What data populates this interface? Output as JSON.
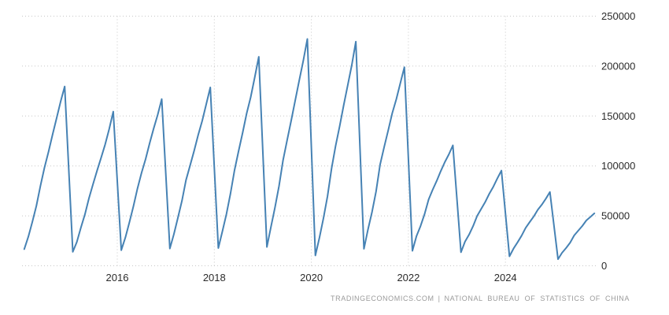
{
  "footer": {
    "provider": "TRADINGECONOMICS.COM",
    "separator": "|",
    "source": "NATIONAL BUREAU OF STATISTICS OF CHINA"
  },
  "colors": {
    "line": "#4682b4",
    "grid": "#c6c6c6",
    "axis_text": "#2b2b2b",
    "footer_text": "#9a9a9a",
    "background": "#ffffff"
  },
  "chart_data": {
    "type": "line",
    "title": "",
    "xlabel": "",
    "ylabel": "",
    "x_ticks": [
      2016,
      2018,
      2020,
      2022,
      2024
    ],
    "x_tick_labels": [
      "2016",
      "2018",
      "2020",
      "2022",
      "2024"
    ],
    "y_ticks": [
      0,
      50000,
      100000,
      150000,
      200000,
      250000
    ],
    "y_tick_labels": [
      "0",
      "50000",
      "100000",
      "150000",
      "200000",
      "250000"
    ],
    "ylim": [
      0,
      250000
    ],
    "x_range_time": [
      2014.083,
      2025.833
    ],
    "grid": "dotted",
    "legend": "none",
    "series": [
      {
        "points": [
          [
            2014,
            2,
            16667
          ],
          [
            2014,
            3,
            29090
          ],
          [
            2014,
            4,
            43934
          ],
          [
            2014,
            5,
            59912
          ],
          [
            2014,
            6,
            80126
          ],
          [
            2014,
            7,
            98240
          ],
          [
            2014,
            8,
            114382
          ],
          [
            2014,
            9,
            131411
          ],
          [
            2014,
            10,
            147754
          ],
          [
            2014,
            11,
            164705
          ],
          [
            2014,
            12,
            179592
          ],
          [
            2015,
            2,
            13977
          ],
          [
            2015,
            3,
            23724
          ],
          [
            2015,
            4,
            38283
          ],
          [
            2015,
            5,
            51511
          ],
          [
            2015,
            6,
            67479
          ],
          [
            2015,
            7,
            81731
          ],
          [
            2015,
            8,
            95182
          ],
          [
            2015,
            9,
            108259
          ],
          [
            2015,
            10,
            121510
          ],
          [
            2015,
            11,
            136839
          ],
          [
            2015,
            12,
            154454
          ],
          [
            2016,
            2,
            15620
          ],
          [
            2016,
            3,
            28281
          ],
          [
            2016,
            4,
            43445
          ],
          [
            2016,
            5,
            59522
          ],
          [
            2016,
            6,
            77537
          ],
          [
            2016,
            7,
            92944
          ],
          [
            2016,
            8,
            106834
          ],
          [
            2016,
            9,
            122655
          ],
          [
            2016,
            10,
            137375
          ],
          [
            2016,
            11,
            151303
          ],
          [
            2016,
            12,
            166928
          ],
          [
            2017,
            2,
            17238
          ],
          [
            2017,
            3,
            31560
          ],
          [
            2017,
            4,
            48240
          ],
          [
            2017,
            5,
            65179
          ],
          [
            2017,
            6,
            85720
          ],
          [
            2017,
            7,
            100371
          ],
          [
            2017,
            8,
            114996
          ],
          [
            2017,
            9,
            131033
          ],
          [
            2017,
            10,
            145127
          ],
          [
            2017,
            11,
            161679
          ],
          [
            2017,
            12,
            178654
          ],
          [
            2018,
            2,
            17746
          ],
          [
            2018,
            3,
            34615
          ],
          [
            2018,
            4,
            51779
          ],
          [
            2018,
            5,
            72190
          ],
          [
            2018,
            6,
            95817
          ],
          [
            2018,
            7,
            114781
          ],
          [
            2018,
            8,
            133293
          ],
          [
            2018,
            9,
            152583
          ],
          [
            2018,
            10,
            168754
          ],
          [
            2018,
            11,
            188895
          ],
          [
            2018,
            12,
            209342
          ],
          [
            2019,
            2,
            18814
          ],
          [
            2019,
            3,
            38728
          ],
          [
            2019,
            4,
            58552
          ],
          [
            2019,
            5,
            79784
          ],
          [
            2019,
            6,
            105509
          ],
          [
            2019,
            7,
            125716
          ],
          [
            2019,
            8,
            145133
          ],
          [
            2019,
            9,
            165707
          ],
          [
            2019,
            10,
            185634
          ],
          [
            2019,
            11,
            205194
          ],
          [
            2019,
            12,
            227154
          ],
          [
            2020,
            2,
            10370
          ],
          [
            2020,
            3,
            28203
          ],
          [
            2020,
            4,
            47768
          ],
          [
            2020,
            5,
            69533
          ],
          [
            2020,
            6,
            97536
          ],
          [
            2020,
            7,
            120032
          ],
          [
            2020,
            8,
            139917
          ],
          [
            2020,
            9,
            160896
          ],
          [
            2020,
            10,
            180718
          ],
          [
            2020,
            11,
            201115
          ],
          [
            2020,
            12,
            224433
          ],
          [
            2021,
            2,
            17037
          ],
          [
            2021,
            3,
            36163
          ],
          [
            2021,
            4,
            53905
          ],
          [
            2021,
            5,
            74349
          ],
          [
            2021,
            6,
            101288
          ],
          [
            2021,
            7,
            118948
          ],
          [
            2021,
            8,
            135502
          ],
          [
            2021,
            9,
            152944
          ],
          [
            2021,
            10,
            166736
          ],
          [
            2021,
            11,
            182820
          ],
          [
            2021,
            12,
            198895
          ],
          [
            2022,
            2,
            14967
          ],
          [
            2022,
            3,
            29838
          ],
          [
            2022,
            4,
            39739
          ],
          [
            2022,
            5,
            51628
          ],
          [
            2022,
            6,
            66423
          ],
          [
            2022,
            7,
            76067
          ],
          [
            2022,
            8,
            85062
          ],
          [
            2022,
            9,
            94767
          ],
          [
            2022,
            10,
            103722
          ],
          [
            2022,
            11,
            111632
          ],
          [
            2022,
            12,
            120587
          ],
          [
            2023,
            2,
            13567
          ],
          [
            2023,
            3,
            24121
          ],
          [
            2023,
            4,
            31220
          ],
          [
            2023,
            5,
            39723
          ],
          [
            2023,
            6,
            49880
          ],
          [
            2023,
            7,
            56969
          ],
          [
            2023,
            8,
            63891
          ],
          [
            2023,
            9,
            72123
          ],
          [
            2023,
            10,
            79177
          ],
          [
            2023,
            11,
            87456
          ],
          [
            2023,
            12,
            95376
          ],
          [
            2024,
            2,
            9429
          ],
          [
            2024,
            3,
            17283
          ],
          [
            2024,
            4,
            23510
          ],
          [
            2024,
            5,
            30090
          ],
          [
            2024,
            6,
            38023
          ],
          [
            2024,
            7,
            43733
          ],
          [
            2024,
            8,
            49465
          ],
          [
            2024,
            9,
            56051
          ],
          [
            2024,
            10,
            61227
          ],
          [
            2024,
            11,
            67308
          ],
          [
            2024,
            12,
            73893
          ],
          [
            2025,
            2,
            6614
          ],
          [
            2025,
            3,
            12996
          ],
          [
            2025,
            4,
            17836
          ],
          [
            2025,
            5,
            23184
          ],
          [
            2025,
            6,
            30364
          ],
          [
            2025,
            7,
            35206
          ],
          [
            2025,
            8,
            39801
          ],
          [
            2025,
            9,
            45399
          ],
          [
            2025,
            10,
            48905
          ],
          [
            2025,
            11,
            52500
          ]
        ]
      }
    ]
  }
}
